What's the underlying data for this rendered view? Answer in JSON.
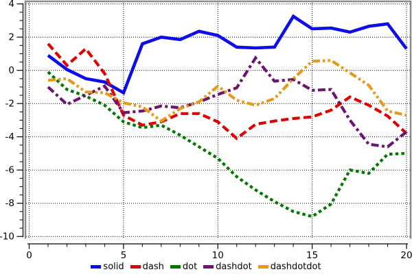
{
  "chart_data": {
    "type": "line",
    "x": [
      1,
      2,
      3,
      4,
      5,
      6,
      7,
      8,
      9,
      10,
      11,
      12,
      13,
      14,
      15,
      16,
      17,
      18,
      19,
      20
    ],
    "series": [
      {
        "name": "solid",
        "style": "solid",
        "color": "#0d0de8",
        "values": [
          0.9,
          0.05,
          -0.5,
          -0.7,
          -1.35,
          1.6,
          2.0,
          1.85,
          2.35,
          2.1,
          1.4,
          1.35,
          1.4,
          3.25,
          2.5,
          2.55,
          2.3,
          2.65,
          2.8,
          1.3
        ]
      },
      {
        "name": "dash",
        "style": "dash",
        "color": "#e00000",
        "values": [
          1.6,
          0.3,
          1.3,
          -0.2,
          -2.7,
          -3.3,
          -3.1,
          -2.6,
          -2.6,
          -3.1,
          -4.1,
          -3.25,
          -3.05,
          -2.9,
          -2.8,
          -2.4,
          -1.6,
          -2.1,
          -2.75,
          -3.8
        ]
      },
      {
        "name": "dot",
        "style": "dot",
        "color": "#007800",
        "values": [
          -0.1,
          -1.15,
          -1.55,
          -2.1,
          -3.1,
          -3.45,
          -3.3,
          -3.9,
          -4.6,
          -5.3,
          -6.4,
          -7.2,
          -7.9,
          -8.5,
          -8.8,
          -8.05,
          -6.0,
          -6.2,
          -5.05,
          -5.0
        ]
      },
      {
        "name": "dashdot",
        "style": "dashdot",
        "color": "#6b1570",
        "values": [
          -1.0,
          -2.05,
          -1.5,
          -0.95,
          -2.55,
          -2.45,
          -2.15,
          -2.25,
          -1.9,
          -1.45,
          -1.05,
          0.75,
          -0.65,
          -0.55,
          -1.2,
          -1.15,
          -3.0,
          -4.45,
          -4.6,
          -3.7
        ]
      },
      {
        "name": "dashdotdot",
        "style": "dashdotdot",
        "color": "#e69a18",
        "values": [
          -0.6,
          -0.5,
          -1.3,
          -1.35,
          -1.95,
          -2.2,
          -3.05,
          -2.3,
          -1.9,
          -0.95,
          -1.8,
          -2.1,
          -1.7,
          -0.5,
          0.55,
          0.6,
          -0.15,
          -0.9,
          -2.45,
          -2.7
        ]
      }
    ],
    "xlim": [
      0,
      20
    ],
    "ylim": [
      -10,
      4
    ],
    "x_ticks_major": [
      0,
      5,
      10,
      15,
      20
    ],
    "x_minor_step": 1,
    "y_ticks_major": [
      4,
      2,
      0,
      -2,
      -4,
      -6,
      -8,
      -10
    ],
    "y_minor_step": 0.5,
    "grid": "dotted",
    "grid_color": "#000000",
    "frame_color": "#8a8a8a",
    "axis_color": "#000000",
    "legend_position": "bottom"
  },
  "axes": {
    "x_tick_labels": [
      "0",
      "5",
      "10",
      "15",
      "20"
    ],
    "y_tick_labels": [
      "4",
      "2",
      "0",
      "-2",
      "-4",
      "-6",
      "-8",
      "-10"
    ]
  },
  "legend": {
    "labels": [
      "solid",
      "dash",
      "dot",
      "dashdot",
      "dashdotdot"
    ]
  }
}
